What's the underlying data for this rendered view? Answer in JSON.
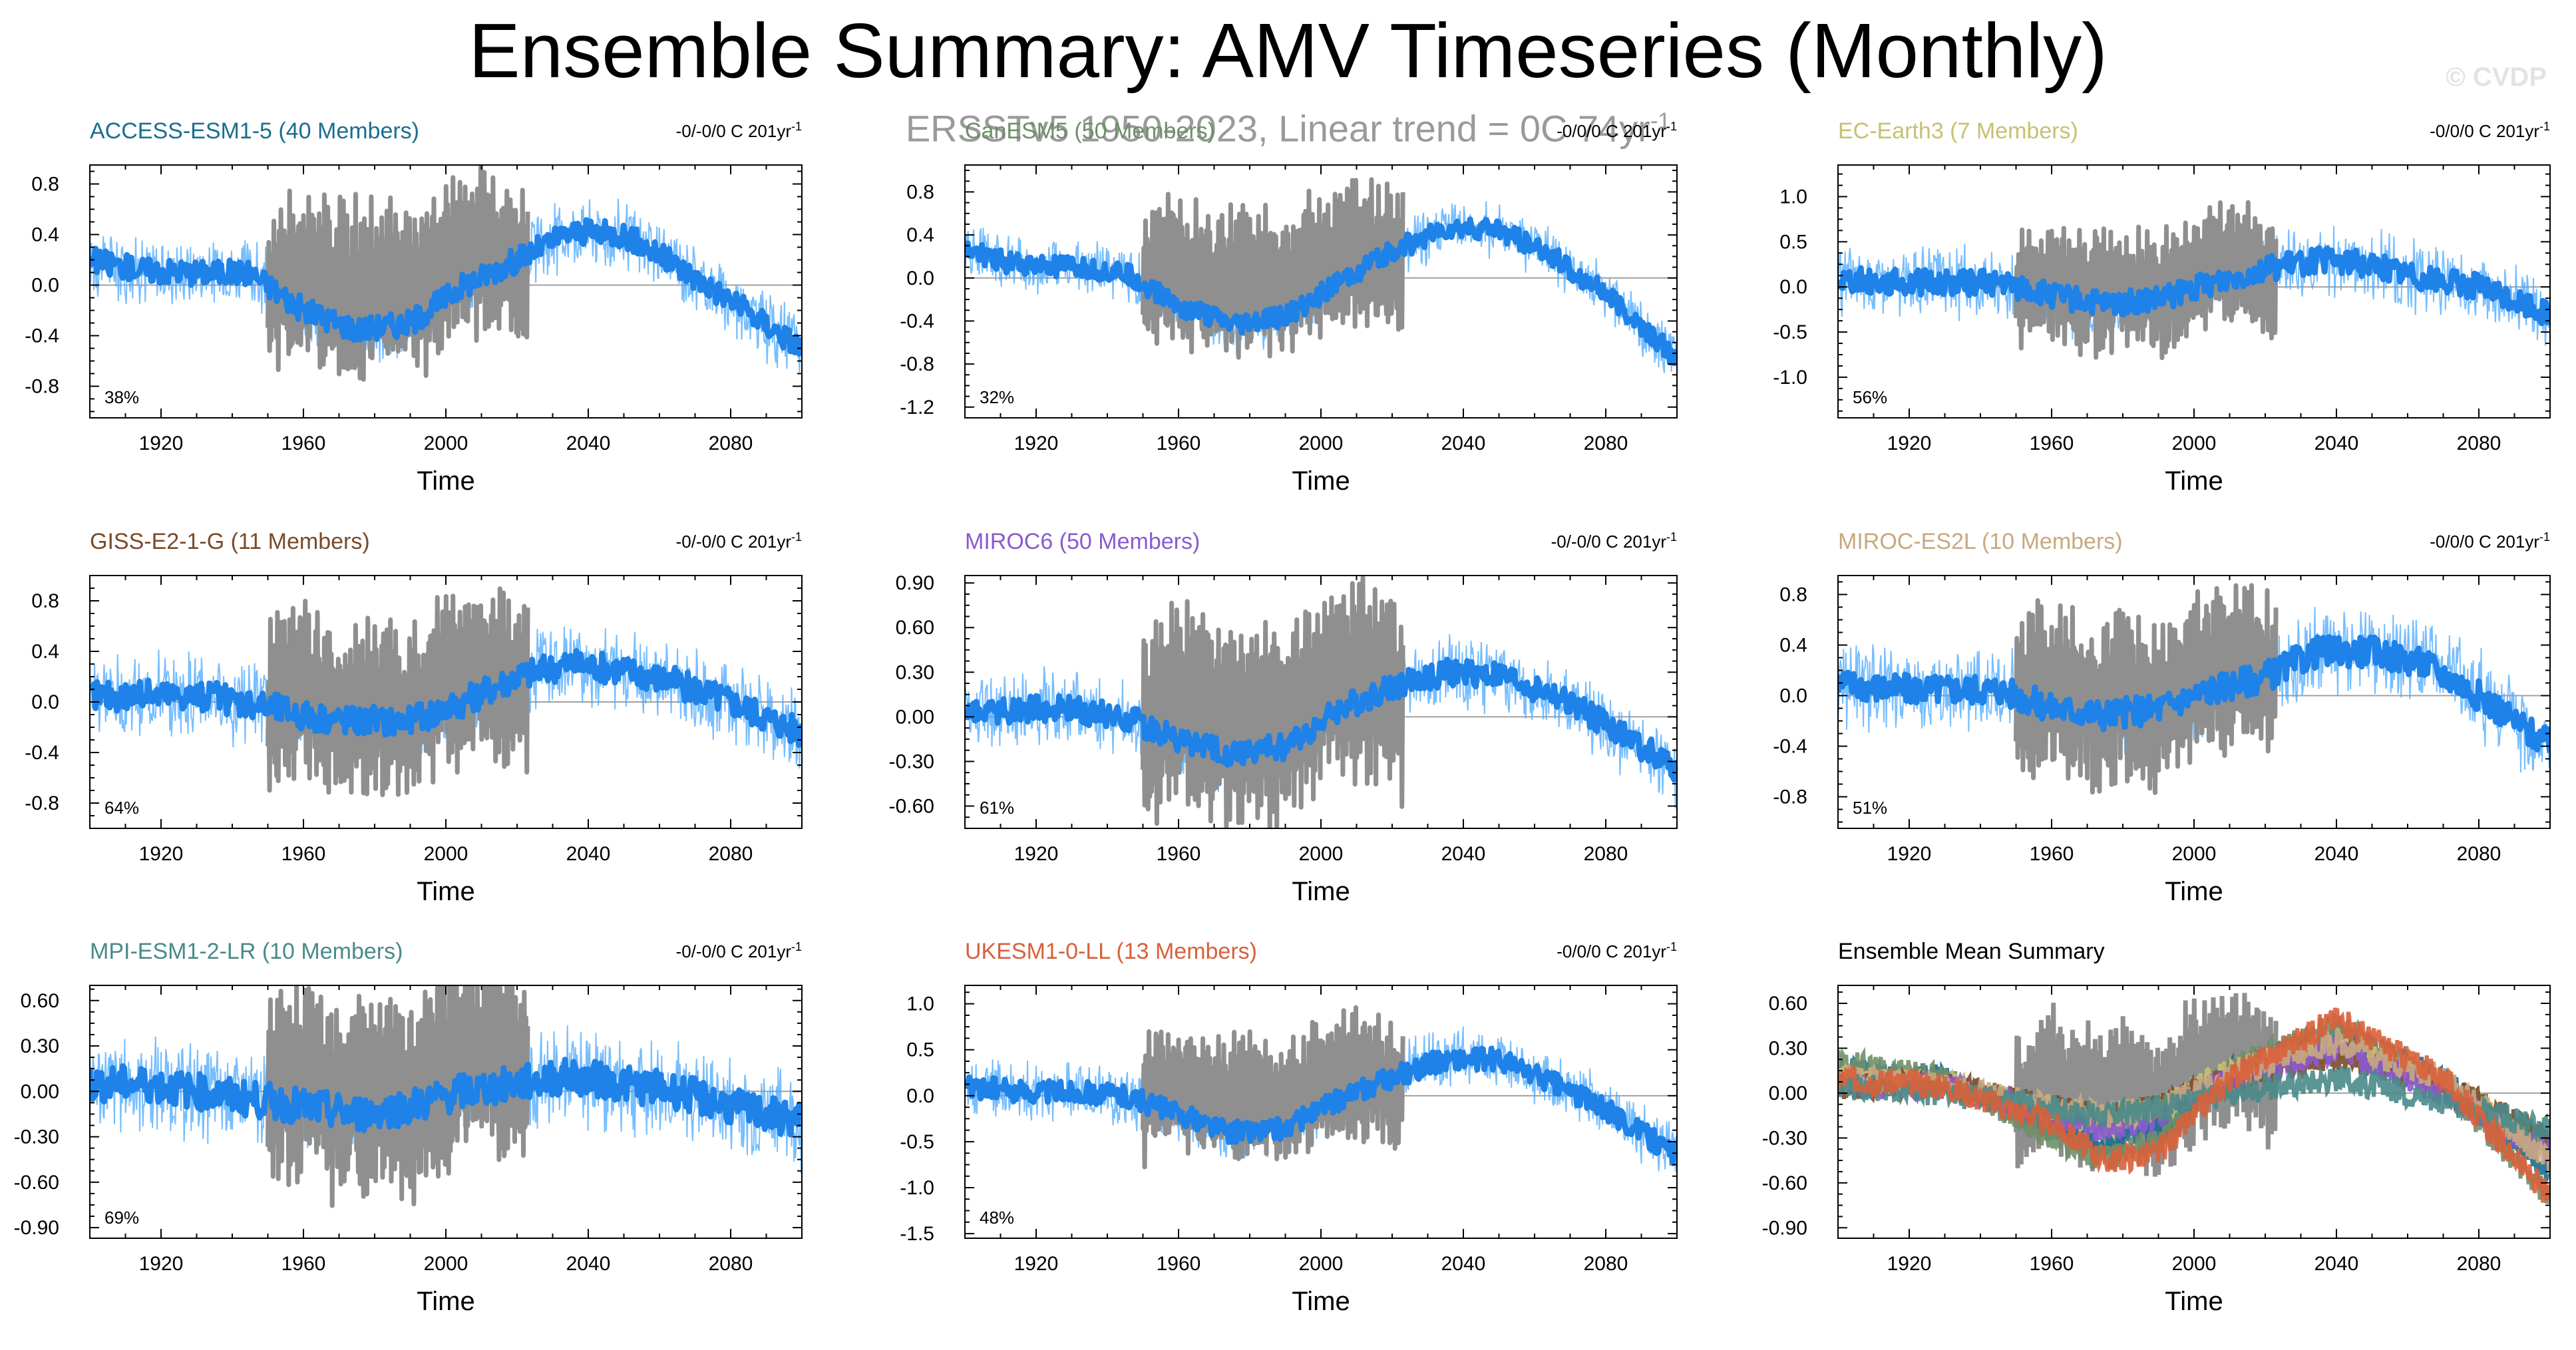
{
  "title": "Ensemble Summary: AMV Timeseries (Monthly)",
  "subtitle": {
    "text": "ERSSTv5 1950-2023, Linear trend = 0C 74yr",
    "superscript": "-1"
  },
  "watermark": "© CVDP",
  "colors": {
    "observations": "#8f8f8f",
    "ensemble_mean": "#1e82e8",
    "ensemble_spread": "#4aa8ff",
    "zero_line": "#a0a0a0"
  },
  "chart_data": [
    {
      "type": "line",
      "model": "ACCESS-ESM1-5 (40 Members)",
      "title_color": "#1a6e8f",
      "trend": "-0/-0/0 C 201yr",
      "trend_sup": "-1",
      "percentile": "38%",
      "xlabel": "Time",
      "xlim": [
        1900,
        2100
      ],
      "xticks": [
        "1920",
        "1960",
        "2000",
        "2040",
        "2080"
      ],
      "ylim": [
        -1.05,
        0.95
      ],
      "yticks": [
        "-0.8",
        "-0.4",
        "0.0",
        "0.4",
        "0.8"
      ],
      "ens_mean": {
        "years": [
          1900,
          1915,
          1930,
          1945,
          1960,
          1975,
          1990,
          2005,
          2020,
          2035,
          2050,
          2065,
          2080,
          2100
        ],
        "values": [
          0.2,
          0.12,
          0.1,
          0.1,
          -0.2,
          -0.35,
          -0.3,
          0.0,
          0.2,
          0.42,
          0.4,
          0.15,
          -0.12,
          -0.5
        ]
      },
      "spread": 0.32,
      "noise": 0.1,
      "obs": {
        "years": [
          1950,
          1960,
          1970,
          1980,
          1990,
          2000,
          2010,
          2023
        ],
        "values": [
          -0.05,
          0.1,
          -0.05,
          0.0,
          -0.1,
          0.15,
          0.25,
          0.1
        ]
      }
    },
    {
      "type": "line",
      "model": "CanESM5 (50 Members)",
      "title_color": "#6f8f6a",
      "trend": "-0/0/0 C 201yr",
      "trend_sup": "-1",
      "percentile": "32%",
      "xlabel": "Time",
      "xlim": [
        1900,
        2100
      ],
      "xticks": [
        "1920",
        "1960",
        "2000",
        "2040",
        "2080"
      ],
      "ylim": [
        -1.3,
        1.05
      ],
      "yticks": [
        "-1.2",
        "-0.8",
        "-0.4",
        "0.0",
        "0.4",
        "0.8"
      ],
      "ens_mean": {
        "years": [
          1900,
          1915,
          1930,
          1945,
          1960,
          1975,
          1990,
          2005,
          2020,
          2035,
          2050,
          2065,
          2080,
          2100
        ],
        "values": [
          0.25,
          0.12,
          0.1,
          0.05,
          -0.25,
          -0.45,
          -0.35,
          -0.05,
          0.25,
          0.45,
          0.45,
          0.2,
          -0.15,
          -0.75
        ]
      },
      "spread": 0.3,
      "noise": 0.1,
      "obs": {
        "years": [
          1950,
          1960,
          1970,
          1980,
          1990,
          2000,
          2010,
          2023
        ],
        "values": [
          -0.05,
          0.1,
          -0.05,
          0.0,
          -0.1,
          0.15,
          0.25,
          0.1
        ]
      }
    },
    {
      "type": "line",
      "model": "EC-Earth3 (7 Members)",
      "title_color": "#c8c071",
      "trend": "-0/0/0 C 201yr",
      "trend_sup": "-1",
      "percentile": "56%",
      "xlabel": "Time",
      "xlim": [
        1900,
        2100
      ],
      "xticks": [
        "1920",
        "1960",
        "2000",
        "2040",
        "2080"
      ],
      "ylim": [
        -1.45,
        1.35
      ],
      "yticks": [
        "-1.0",
        "-0.5",
        "0.0",
        "0.5",
        "1.0"
      ],
      "ens_mean": {
        "years": [
          1900,
          1915,
          1930,
          1945,
          1960,
          1975,
          1990,
          2005,
          2020,
          2035,
          2050,
          2065,
          2080,
          2100
        ],
        "values": [
          0.1,
          0.05,
          0.05,
          0.05,
          -0.1,
          -0.2,
          -0.15,
          0.05,
          0.2,
          0.3,
          0.25,
          0.1,
          0.0,
          -0.3
        ]
      },
      "spread": 0.45,
      "noise": 0.14,
      "obs": {
        "years": [
          1950,
          1960,
          1970,
          1980,
          1990,
          2000,
          2010,
          2023
        ],
        "values": [
          -0.05,
          0.1,
          -0.05,
          0.0,
          -0.1,
          0.15,
          0.25,
          0.1
        ]
      }
    },
    {
      "type": "line",
      "model": "GISS-E2-1-G (11 Members)",
      "title_color": "#7a4a2a",
      "trend": "-0/-0/0 C 201yr",
      "trend_sup": "-1",
      "percentile": "64%",
      "xlabel": "Time",
      "xlim": [
        1900,
        2100
      ],
      "xticks": [
        "1920",
        "1960",
        "2000",
        "2040",
        "2080"
      ],
      "ylim": [
        -1.0,
        1.0
      ],
      "yticks": [
        "-0.8",
        "-0.4",
        "0.0",
        "0.4",
        "0.8"
      ],
      "ens_mean": {
        "years": [
          1900,
          1915,
          1930,
          1945,
          1960,
          1975,
          1990,
          2005,
          2020,
          2035,
          2050,
          2065,
          2080,
          2100
        ],
        "values": [
          0.05,
          0.05,
          0.05,
          0.0,
          -0.1,
          -0.15,
          -0.15,
          0.0,
          0.2,
          0.3,
          0.25,
          0.15,
          0.0,
          -0.25
        ]
      },
      "spread": 0.38,
      "noise": 0.12,
      "obs": {
        "years": [
          1950,
          1960,
          1970,
          1980,
          1990,
          2000,
          2010,
          2023
        ],
        "values": [
          -0.05,
          0.1,
          -0.05,
          0.0,
          -0.1,
          0.15,
          0.25,
          0.1
        ]
      }
    },
    {
      "type": "line",
      "model": "MIROC6 (50 Members)",
      "title_color": "#8a5ad0",
      "trend": "-0/-0/0 C 201yr",
      "trend_sup": "-1",
      "percentile": "61%",
      "xlabel": "Time",
      "xlim": [
        1900,
        2100
      ],
      "xticks": [
        "1920",
        "1960",
        "2000",
        "2040",
        "2080"
      ],
      "ylim": [
        -0.75,
        0.95
      ],
      "yticks": [
        "-0.60",
        "-0.30",
        "0.00",
        "0.30",
        "0.60",
        "0.90"
      ],
      "ens_mean": {
        "years": [
          1900,
          1915,
          1930,
          1945,
          1960,
          1975,
          1990,
          2005,
          2020,
          2035,
          2050,
          2065,
          2080,
          2100
        ],
        "values": [
          0.05,
          0.05,
          0.05,
          0.0,
          -0.15,
          -0.25,
          -0.2,
          0.05,
          0.2,
          0.3,
          0.28,
          0.15,
          -0.05,
          -0.35
        ]
      },
      "spread": 0.3,
      "noise": 0.09,
      "obs": {
        "years": [
          1950,
          1960,
          1970,
          1980,
          1990,
          2000,
          2010,
          2023
        ],
        "values": [
          -0.05,
          0.1,
          -0.05,
          0.0,
          -0.1,
          0.15,
          0.25,
          0.1
        ]
      }
    },
    {
      "type": "line",
      "model": "MIROC-ES2L (10 Members)",
      "title_color": "#c8a880",
      "trend": "-0/0/0 C 201yr",
      "trend_sup": "-1",
      "percentile": "51%",
      "xlabel": "Time",
      "xlim": [
        1900,
        2100
      ],
      "xticks": [
        "1920",
        "1960",
        "2000",
        "2040",
        "2080"
      ],
      "ylim": [
        -1.05,
        0.95
      ],
      "yticks": [
        "-0.8",
        "-0.4",
        "0.0",
        "0.4",
        "0.8"
      ],
      "ens_mean": {
        "years": [
          1900,
          1915,
          1930,
          1945,
          1960,
          1975,
          1990,
          2005,
          2020,
          2035,
          2050,
          2065,
          2080,
          2100
        ],
        "values": [
          0.1,
          0.05,
          0.05,
          0.05,
          -0.1,
          -0.15,
          -0.1,
          0.05,
          0.15,
          0.35,
          0.35,
          0.25,
          0.0,
          -0.4
        ]
      },
      "spread": 0.4,
      "noise": 0.12,
      "obs": {
        "years": [
          1950,
          1960,
          1970,
          1980,
          1990,
          2000,
          2010,
          2023
        ],
        "values": [
          -0.05,
          0.1,
          -0.05,
          0.0,
          -0.1,
          0.15,
          0.25,
          0.1
        ]
      }
    },
    {
      "type": "line",
      "model": "MPI-ESM1-2-LR (10 Members)",
      "title_color": "#4a8a8a",
      "trend": "-0/-0/0 C 201yr",
      "trend_sup": "-1",
      "percentile": "69%",
      "xlabel": "Time",
      "xlim": [
        1900,
        2100
      ],
      "xticks": [
        "1920",
        "1960",
        "2000",
        "2040",
        "2080"
      ],
      "ylim": [
        -0.97,
        0.7
      ],
      "yticks": [
        "-0.90",
        "-0.60",
        "-0.30",
        "0.00",
        "0.30",
        "0.60"
      ],
      "ens_mean": {
        "years": [
          1900,
          1915,
          1930,
          1945,
          1960,
          1975,
          1990,
          2005,
          2020,
          2035,
          2050,
          2065,
          2080,
          2100
        ],
        "values": [
          0.05,
          0.05,
          0.0,
          -0.05,
          -0.1,
          -0.15,
          -0.1,
          0.0,
          0.05,
          0.1,
          0.05,
          0.0,
          -0.1,
          -0.2
        ]
      },
      "spread": 0.38,
      "noise": 0.12,
      "obs": {
        "years": [
          1950,
          1960,
          1970,
          1980,
          1990,
          2000,
          2010,
          2023
        ],
        "values": [
          -0.05,
          0.1,
          -0.05,
          0.0,
          -0.1,
          0.15,
          0.25,
          0.1
        ]
      }
    },
    {
      "type": "line",
      "model": "UKESM1-0-LL (13 Members)",
      "title_color": "#d8603a",
      "trend": "-0/0/0 C 201yr",
      "trend_sup": "-1",
      "percentile": "48%",
      "xlabel": "Time",
      "xlim": [
        1900,
        2100
      ],
      "xticks": [
        "1920",
        "1960",
        "2000",
        "2040",
        "2080"
      ],
      "ylim": [
        -1.55,
        1.2
      ],
      "yticks": [
        "-1.5",
        "-1.0",
        "-0.5",
        "0.0",
        "0.5",
        "1.0"
      ],
      "ens_mean": {
        "years": [
          1900,
          1915,
          1930,
          1945,
          1960,
          1975,
          1990,
          2005,
          2020,
          2035,
          2050,
          2065,
          2080,
          2100
        ],
        "values": [
          0.1,
          0.05,
          0.05,
          0.0,
          -0.2,
          -0.4,
          -0.35,
          -0.05,
          0.2,
          0.4,
          0.4,
          0.15,
          -0.15,
          -0.65
        ]
      },
      "spread": 0.38,
      "noise": 0.12,
      "obs": {
        "years": [
          1950,
          1960,
          1970,
          1980,
          1990,
          2000,
          2010,
          2023
        ],
        "values": [
          -0.05,
          0.1,
          -0.05,
          0.0,
          -0.1,
          0.15,
          0.25,
          0.1
        ]
      }
    },
    {
      "type": "line",
      "model": "Ensemble Mean Summary",
      "title_color": "#000000",
      "summary": true,
      "xlabel": "Time",
      "xlim": [
        1900,
        2100
      ],
      "xticks": [
        "1920",
        "1960",
        "2000",
        "2040",
        "2080"
      ],
      "ylim": [
        -0.97,
        0.72
      ],
      "yticks": [
        "-0.90",
        "-0.60",
        "-0.30",
        "0.00",
        "0.30",
        "0.60"
      ],
      "series": [
        {
          "color": "#1a6e8f",
          "years": [
            1900,
            1930,
            1960,
            1975,
            1990,
            2010,
            2040,
            2070,
            2100
          ],
          "values": [
            0.15,
            0.1,
            -0.25,
            -0.35,
            -0.25,
            0.15,
            0.4,
            0.1,
            -0.55
          ]
        },
        {
          "color": "#6f8f6a",
          "years": [
            1900,
            1930,
            1960,
            1975,
            1990,
            2010,
            2040,
            2070,
            2100
          ],
          "values": [
            0.2,
            0.1,
            -0.3,
            -0.45,
            -0.3,
            0.15,
            0.45,
            0.05,
            -0.7
          ]
        },
        {
          "color": "#c8c071",
          "years": [
            1900,
            1930,
            1960,
            1975,
            1990,
            2010,
            2040,
            2070,
            2100
          ],
          "values": [
            0.1,
            0.05,
            -0.1,
            -0.2,
            -0.1,
            0.15,
            0.3,
            0.05,
            -0.35
          ]
        },
        {
          "color": "#7a4a2a",
          "years": [
            1900,
            1930,
            1960,
            1975,
            1990,
            2010,
            2040,
            2070,
            2100
          ],
          "values": [
            0.05,
            0.05,
            -0.1,
            -0.15,
            -0.1,
            0.1,
            0.25,
            0.05,
            -0.3
          ]
        },
        {
          "color": "#8a5ad0",
          "years": [
            1900,
            1930,
            1960,
            1975,
            1990,
            2010,
            2040,
            2070,
            2100
          ],
          "values": [
            0.05,
            0.05,
            -0.15,
            -0.25,
            -0.15,
            0.1,
            0.3,
            0.0,
            -0.4
          ]
        },
        {
          "color": "#c8a880",
          "years": [
            1900,
            1930,
            1960,
            1975,
            1990,
            2010,
            2040,
            2070,
            2100
          ],
          "values": [
            0.1,
            0.05,
            -0.1,
            -0.15,
            -0.1,
            0.1,
            0.35,
            0.1,
            -0.45
          ]
        },
        {
          "color": "#4a8a8a",
          "years": [
            1900,
            1930,
            1960,
            1975,
            1990,
            2010,
            2040,
            2070,
            2100
          ],
          "values": [
            0.05,
            0.0,
            -0.1,
            -0.15,
            -0.1,
            0.0,
            0.1,
            -0.05,
            -0.25
          ]
        },
        {
          "color": "#d8603a",
          "years": [
            1900,
            1930,
            1960,
            1975,
            1990,
            2010,
            2040,
            2070,
            2100
          ],
          "values": [
            0.1,
            0.05,
            -0.2,
            -0.45,
            -0.4,
            0.1,
            0.5,
            0.1,
            -0.7
          ]
        }
      ],
      "obs": {
        "years": [
          1950,
          1960,
          1970,
          1980,
          1990,
          2000,
          2010,
          2023
        ],
        "values": [
          -0.05,
          0.1,
          -0.05,
          0.0,
          -0.1,
          0.15,
          0.25,
          0.1
        ]
      }
    }
  ]
}
